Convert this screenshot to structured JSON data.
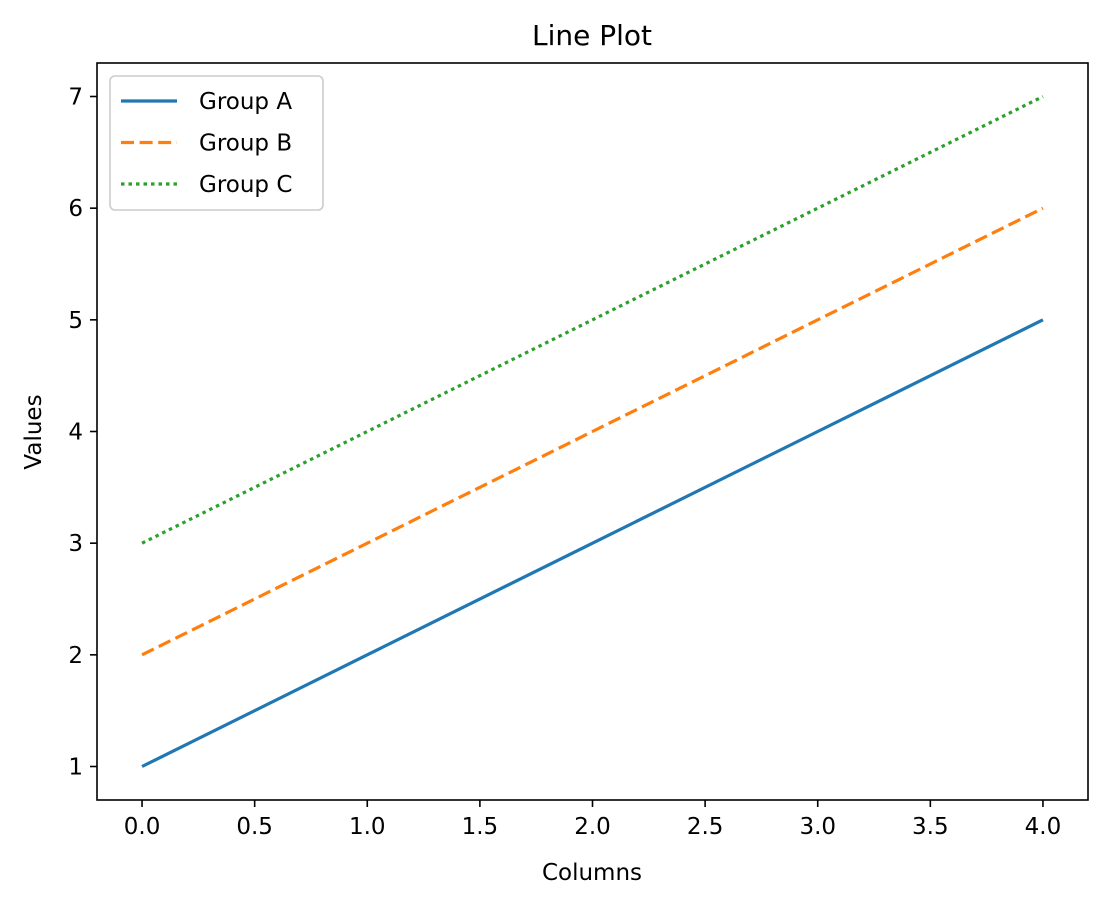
{
  "chart_data": {
    "type": "line",
    "title": "Line Plot",
    "xlabel": "Columns",
    "ylabel": "Values",
    "x": [
      0,
      1,
      2,
      3,
      4
    ],
    "xticks": [
      0.0,
      0.5,
      1.0,
      1.5,
      2.0,
      2.5,
      3.0,
      3.5,
      4.0
    ],
    "xtick_labels": [
      "0.0",
      "0.5",
      "1.0",
      "1.5",
      "2.0",
      "2.5",
      "3.0",
      "3.5",
      "4.0"
    ],
    "yticks": [
      1,
      2,
      3,
      4,
      5,
      6,
      7
    ],
    "ytick_labels": [
      "1",
      "2",
      "3",
      "4",
      "5",
      "6",
      "7"
    ],
    "xlim": [
      -0.2,
      4.2
    ],
    "ylim": [
      0.7,
      7.3
    ],
    "grid": false,
    "legend_position": "top-left",
    "series": [
      {
        "name": "Group A",
        "values": [
          1,
          2,
          3,
          4,
          5
        ],
        "color": "#1f77b4",
        "linestyle": "solid"
      },
      {
        "name": "Group B",
        "values": [
          2,
          3,
          4,
          5,
          6
        ],
        "color": "#ff7f0e",
        "linestyle": "dashed"
      },
      {
        "name": "Group C",
        "values": [
          3,
          4,
          5,
          6,
          7
        ],
        "color": "#2ca02c",
        "linestyle": "dotted"
      }
    ]
  }
}
